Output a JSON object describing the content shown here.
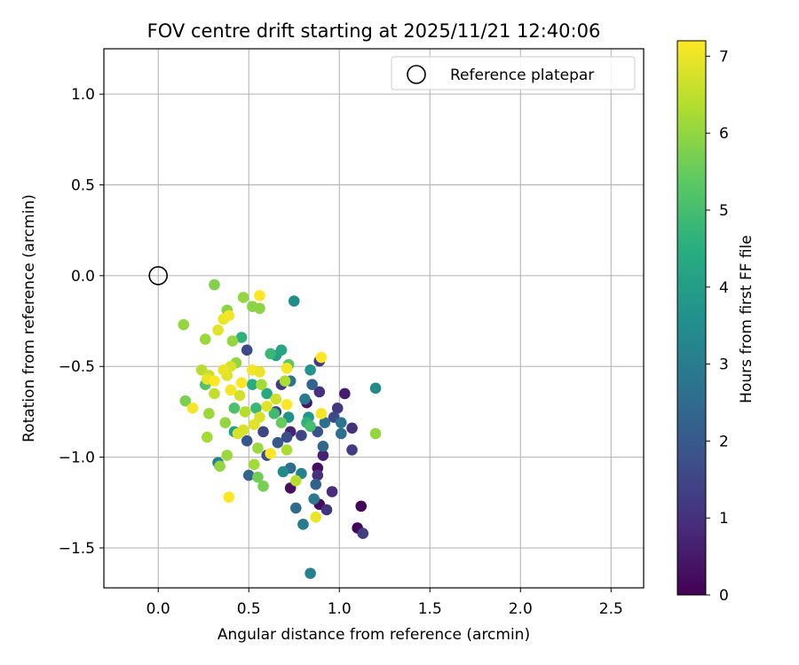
{
  "chart_data": {
    "type": "scatter",
    "title": "FOV centre drift starting at 2025/11/21 12:40:06",
    "xlabel": "Angular distance from reference (arcmin)",
    "ylabel": "Rotation from reference (arcmin)",
    "xlim": [
      -0.3,
      2.68
    ],
    "ylim": [
      -1.72,
      1.25
    ],
    "xticks": [
      0.0,
      0.5,
      1.0,
      1.5,
      2.0,
      2.5
    ],
    "xtick_labels": [
      "0.0",
      "0.5",
      "1.0",
      "1.5",
      "2.0",
      "2.5"
    ],
    "yticks": [
      1.0,
      0.5,
      0.0,
      -0.5,
      -1.0,
      -1.5
    ],
    "ytick_labels": [
      "1.0",
      "0.5",
      "0.0",
      "−0.5",
      "−1.0",
      "−1.5"
    ],
    "grid": true,
    "legend": {
      "position": "top-right",
      "label": "Reference platepar"
    },
    "reference_point": {
      "x": 0.0,
      "y": 0.0
    },
    "colorbar": {
      "label": "Hours from first FF file",
      "colormap": "viridis",
      "range": [
        0,
        7.2
      ],
      "ticks": [
        0,
        1,
        2,
        3,
        4,
        5,
        6,
        7
      ],
      "tick_labels": [
        "0",
        "1",
        "2",
        "3",
        "4",
        "5",
        "6",
        "7"
      ]
    },
    "points": [
      {
        "x": 1.1,
        "y": -1.39,
        "c": 0.1
      },
      {
        "x": 1.12,
        "y": -1.27,
        "c": 0.1
      },
      {
        "x": 0.89,
        "y": -1.26,
        "c": 0.2
      },
      {
        "x": 0.73,
        "y": -1.17,
        "c": 0.3
      },
      {
        "x": 0.88,
        "y": -1.06,
        "c": 0.3
      },
      {
        "x": 1.03,
        "y": -0.65,
        "c": 0.6
      },
      {
        "x": 0.82,
        "y": -0.7,
        "c": 0.4
      },
      {
        "x": 0.73,
        "y": -0.86,
        "c": 0.7
      },
      {
        "x": 0.91,
        "y": -0.99,
        "c": 0.7
      },
      {
        "x": 0.96,
        "y": -1.19,
        "c": 0.9
      },
      {
        "x": 1.13,
        "y": -1.42,
        "c": 1.3
      },
      {
        "x": 0.88,
        "y": -1.1,
        "c": 1.0
      },
      {
        "x": 0.93,
        "y": -1.29,
        "c": 1.1
      },
      {
        "x": 0.89,
        "y": -0.64,
        "c": 1.0
      },
      {
        "x": 0.99,
        "y": -0.73,
        "c": 1.2
      },
      {
        "x": 1.07,
        "y": -0.84,
        "c": 1.0
      },
      {
        "x": 1.07,
        "y": -0.96,
        "c": 1.3
      },
      {
        "x": 0.89,
        "y": -0.47,
        "c": 1.2
      },
      {
        "x": 0.79,
        "y": -0.88,
        "c": 1.5
      },
      {
        "x": 0.88,
        "y": -0.86,
        "c": 1.8
      },
      {
        "x": 0.97,
        "y": -0.78,
        "c": 1.6
      },
      {
        "x": 0.49,
        "y": -0.41,
        "c": 1.6
      },
      {
        "x": 0.58,
        "y": -0.86,
        "c": 1.5
      },
      {
        "x": 0.68,
        "y": -0.6,
        "c": 1.3
      },
      {
        "x": 0.65,
        "y": -0.75,
        "c": 1.4
      },
      {
        "x": 0.71,
        "y": -0.89,
        "c": 1.7
      },
      {
        "x": 0.49,
        "y": -0.91,
        "c": 1.9
      },
      {
        "x": 0.6,
        "y": -0.99,
        "c": 1.7
      },
      {
        "x": 0.66,
        "y": -0.92,
        "c": 2.0
      },
      {
        "x": 0.87,
        "y": -1.15,
        "c": 2.2
      },
      {
        "x": 0.91,
        "y": -0.94,
        "c": 2.4
      },
      {
        "x": 1.01,
        "y": -0.87,
        "c": 2.6
      },
      {
        "x": 0.5,
        "y": -1.1,
        "c": 2.3
      },
      {
        "x": 0.76,
        "y": -1.28,
        "c": 2.5
      },
      {
        "x": 0.73,
        "y": -1.06,
        "c": 2.5
      },
      {
        "x": 0.85,
        "y": -0.6,
        "c": 2.3
      },
      {
        "x": 0.73,
        "y": -0.58,
        "c": 2.8
      },
      {
        "x": 0.81,
        "y": -0.68,
        "c": 2.9
      },
      {
        "x": 0.92,
        "y": -0.81,
        "c": 2.6
      },
      {
        "x": 1.01,
        "y": -0.81,
        "c": 2.8
      },
      {
        "x": 0.84,
        "y": -1.64,
        "c": 3.1
      },
      {
        "x": 0.8,
        "y": -1.37,
        "c": 3.0
      },
      {
        "x": 0.86,
        "y": -1.23,
        "c": 2.9
      },
      {
        "x": 0.79,
        "y": -1.09,
        "c": 3.2
      },
      {
        "x": 0.33,
        "y": -1.03,
        "c": 3.1
      },
      {
        "x": 0.69,
        "y": -1.08,
        "c": 3.4
      },
      {
        "x": 0.75,
        "y": -0.14,
        "c": 3.5
      },
      {
        "x": 1.2,
        "y": -0.62,
        "c": 3.4
      },
      {
        "x": 0.84,
        "y": -0.52,
        "c": 3.7
      },
      {
        "x": 0.65,
        "y": -0.44,
        "c": 4.0
      },
      {
        "x": 0.68,
        "y": -0.41,
        "c": 4.2
      },
      {
        "x": 0.72,
        "y": -0.78,
        "c": 3.6
      },
      {
        "x": 0.83,
        "y": -0.78,
        "c": 3.8
      },
      {
        "x": 0.42,
        "y": -0.86,
        "c": 4.0
      },
      {
        "x": 0.6,
        "y": -0.65,
        "c": 4.3
      },
      {
        "x": 0.52,
        "y": -0.6,
        "c": 4.4
      },
      {
        "x": 0.46,
        "y": -0.34,
        "c": 4.6
      },
      {
        "x": 0.62,
        "y": -0.43,
        "c": 4.8
      },
      {
        "x": 0.82,
        "y": -0.81,
        "c": 4.6
      },
      {
        "x": 0.64,
        "y": -0.76,
        "c": 4.9
      },
      {
        "x": 0.54,
        "y": -0.73,
        "c": 4.8
      },
      {
        "x": 0.84,
        "y": -0.83,
        "c": 5.0
      },
      {
        "x": 0.42,
        "y": -0.73,
        "c": 5.1
      },
      {
        "x": 0.26,
        "y": -0.6,
        "c": 5.2
      },
      {
        "x": 0.72,
        "y": -0.49,
        "c": 5.3
      },
      {
        "x": 0.68,
        "y": -0.81,
        "c": 5.5
      },
      {
        "x": 0.55,
        "y": -1.11,
        "c": 5.6
      },
      {
        "x": 0.58,
        "y": -1.16,
        "c": 5.7
      },
      {
        "x": 0.15,
        "y": -0.69,
        "c": 5.7
      },
      {
        "x": 0.31,
        "y": -0.05,
        "c": 5.8
      },
      {
        "x": 0.38,
        "y": -0.19,
        "c": 5.9
      },
      {
        "x": 0.52,
        "y": -0.17,
        "c": 5.9
      },
      {
        "x": 0.56,
        "y": -0.18,
        "c": 5.9
      },
      {
        "x": 0.47,
        "y": -0.12,
        "c": 6.0
      },
      {
        "x": 0.14,
        "y": -0.27,
        "c": 6.0
      },
      {
        "x": 0.26,
        "y": -0.35,
        "c": 6.1
      },
      {
        "x": 0.43,
        "y": -0.48,
        "c": 6.0
      },
      {
        "x": 0.41,
        "y": -0.36,
        "c": 6.0
      },
      {
        "x": 0.28,
        "y": -0.76,
        "c": 6.1
      },
      {
        "x": 0.27,
        "y": -0.89,
        "c": 6.2
      },
      {
        "x": 0.37,
        "y": -0.81,
        "c": 6.0
      },
      {
        "x": 0.38,
        "y": -0.99,
        "c": 6.1
      },
      {
        "x": 0.34,
        "y": -1.05,
        "c": 6.0
      },
      {
        "x": 0.53,
        "y": -1.04,
        "c": 6.2
      },
      {
        "x": 0.55,
        "y": -0.95,
        "c": 6.1
      },
      {
        "x": 0.71,
        "y": -0.96,
        "c": 6.3
      },
      {
        "x": 0.76,
        "y": -1.13,
        "c": 6.4
      },
      {
        "x": 1.2,
        "y": -0.87,
        "c": 6.0
      },
      {
        "x": 0.7,
        "y": -0.58,
        "c": 6.3
      },
      {
        "x": 0.57,
        "y": -0.6,
        "c": 6.2
      },
      {
        "x": 0.48,
        "y": -0.75,
        "c": 6.4
      },
      {
        "x": 0.31,
        "y": -0.65,
        "c": 6.5
      },
      {
        "x": 0.24,
        "y": -0.52,
        "c": 6.4
      },
      {
        "x": 0.28,
        "y": -0.55,
        "c": 6.6
      },
      {
        "x": 0.45,
        "y": -0.66,
        "c": 6.7
      },
      {
        "x": 0.44,
        "y": -0.87,
        "c": 6.8
      },
      {
        "x": 0.47,
        "y": -0.85,
        "c": 6.8
      },
      {
        "x": 0.6,
        "y": -0.72,
        "c": 6.9
      },
      {
        "x": 0.65,
        "y": -0.68,
        "c": 6.7
      },
      {
        "x": 0.56,
        "y": -0.78,
        "c": 6.8
      },
      {
        "x": 0.53,
        "y": -0.82,
        "c": 6.9
      },
      {
        "x": 0.4,
        "y": -0.5,
        "c": 6.8
      },
      {
        "x": 0.38,
        "y": -0.55,
        "c": 6.9
      },
      {
        "x": 0.36,
        "y": -0.24,
        "c": 7.0
      },
      {
        "x": 0.39,
        "y": -0.22,
        "c": 7.1
      },
      {
        "x": 0.33,
        "y": -0.3,
        "c": 6.9
      },
      {
        "x": 0.27,
        "y": -0.57,
        "c": 7.0
      },
      {
        "x": 0.19,
        "y": -0.73,
        "c": 7.1
      },
      {
        "x": 0.39,
        "y": -1.22,
        "c": 7.2
      },
      {
        "x": 0.56,
        "y": -0.11,
        "c": 7.2
      },
      {
        "x": 0.52,
        "y": -0.52,
        "c": 7.1
      },
      {
        "x": 0.56,
        "y": -0.53,
        "c": 7.0
      },
      {
        "x": 0.71,
        "y": -0.51,
        "c": 7.1
      },
      {
        "x": 0.9,
        "y": -0.45,
        "c": 7.2
      },
      {
        "x": 0.9,
        "y": -0.76,
        "c": 7.1
      },
      {
        "x": 0.87,
        "y": -1.33,
        "c": 7.0
      },
      {
        "x": 0.71,
        "y": -0.71,
        "c": 7.2
      },
      {
        "x": 0.62,
        "y": -0.98,
        "c": 7.2
      },
      {
        "x": 0.46,
        "y": -0.59,
        "c": 7.2
      },
      {
        "x": 0.4,
        "y": -0.63,
        "c": 7.1
      },
      {
        "x": 0.36,
        "y": -0.52,
        "c": 7.0
      },
      {
        "x": 0.31,
        "y": -0.58,
        "c": 7.2
      }
    ]
  }
}
